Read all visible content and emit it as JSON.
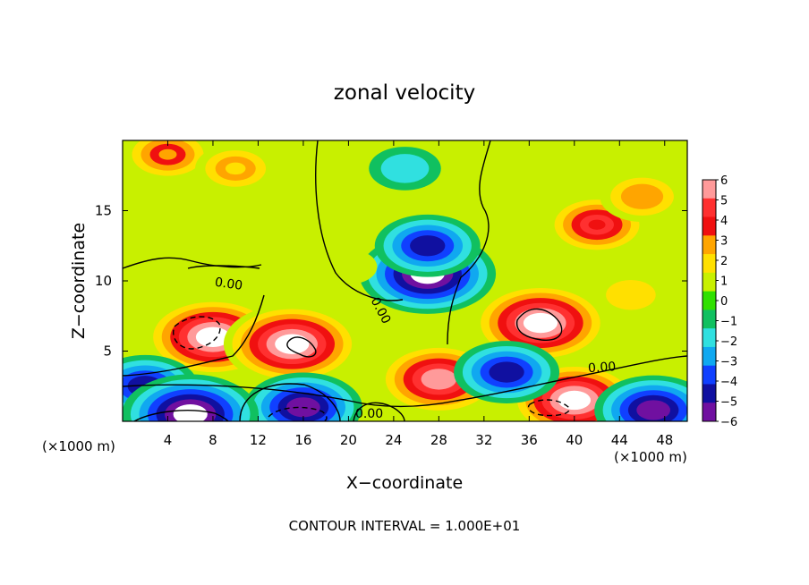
{
  "chart_data": {
    "type": "heatmap",
    "title": "zonal velocity",
    "xlabel": "X−coordinate",
    "ylabel": "Z−coordinate",
    "x_unit": "(×1000 m)",
    "y_unit": "(×1000 m)",
    "xlim": [
      0,
      50
    ],
    "ylim": [
      0,
      20
    ],
    "xticks": [
      4,
      8,
      12,
      16,
      20,
      24,
      28,
      32,
      36,
      40,
      44,
      48
    ],
    "yticks": [
      5,
      10,
      15
    ],
    "colorbar": {
      "ticks": [
        6,
        5,
        4,
        3,
        2,
        1,
        0,
        -1,
        -2,
        -3,
        -4,
        -5,
        -6
      ],
      "tick_labels": [
        "6",
        "5",
        "4",
        "3",
        "2",
        "1",
        "0",
        "−1",
        "−2",
        "−3",
        "−4",
        "−5",
        "−6"
      ],
      "colors": [
        "#ff9a9a",
        "#ff3030",
        "#f01010",
        "#ffa500",
        "#ffe000",
        "#c8f000",
        "#30e000",
        "#10c060",
        "#30e0e0",
        "#10a8f0",
        "#1040ff",
        "#1010a0",
        "#7010a0"
      ]
    },
    "contour_labels": [
      "0.00",
      "0.00",
      "0.00",
      "0.00"
    ],
    "contour_interval_text": "CONTOUR INTERVAL = 1.000E+01",
    "field_features": [
      {
        "x": 4,
        "y": 19,
        "value": 3.2
      },
      {
        "x": 10,
        "y": 18,
        "value": 2.5
      },
      {
        "x": 42,
        "y": 14,
        "value": 4.2
      },
      {
        "x": 46,
        "y": 16,
        "value": 2.8
      },
      {
        "x": 20,
        "y": 16,
        "value": 0.8
      },
      {
        "x": 25,
        "y": 18,
        "value": -1.8
      },
      {
        "x": 27,
        "y": 10.5,
        "value": -7
      },
      {
        "x": 27,
        "y": 12.5,
        "value": -4.5
      },
      {
        "x": 8,
        "y": 6,
        "value": 7
      },
      {
        "x": 15,
        "y": 5.5,
        "value": 7
      },
      {
        "x": 28,
        "y": 3,
        "value": 6
      },
      {
        "x": 37,
        "y": 7,
        "value": 7
      },
      {
        "x": 40,
        "y": 1.5,
        "value": 6.5
      },
      {
        "x": 2,
        "y": 2.5,
        "value": -4.5
      },
      {
        "x": 16,
        "y": 1,
        "value": -5.5
      },
      {
        "x": 6,
        "y": 0.5,
        "value": -7
      },
      {
        "x": 34,
        "y": 3.5,
        "value": -4.5
      },
      {
        "x": 47,
        "y": 0.8,
        "value": -5.5
      },
      {
        "x": 20,
        "y": 11,
        "value": 0.6
      },
      {
        "x": 45,
        "y": 9,
        "value": 2
      }
    ]
  }
}
